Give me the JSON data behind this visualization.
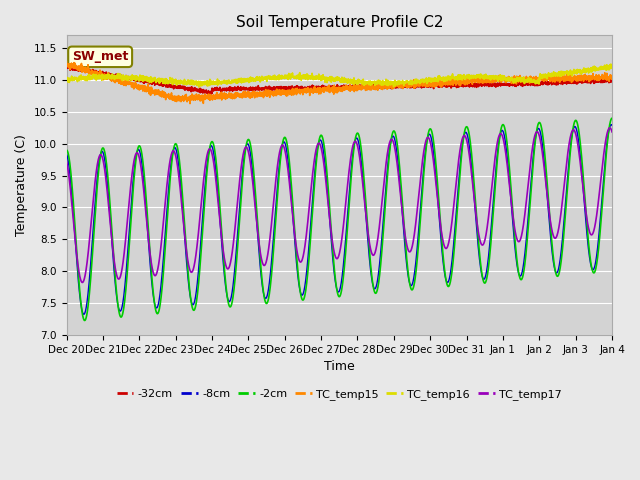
{
  "title": "Soil Temperature Profile C2",
  "xlabel": "Time",
  "ylabel": "Temperature (C)",
  "ylim": [
    7.0,
    11.7
  ],
  "yticks": [
    7.0,
    7.5,
    8.0,
    8.5,
    9.0,
    9.5,
    10.0,
    10.5,
    11.0,
    11.5
  ],
  "colors": {
    "neg32cm": "#cc0000",
    "neg8cm": "#0000cc",
    "neg2cm": "#00cc00",
    "TC15": "#ff8800",
    "TC16": "#dddd00",
    "TC17": "#9900bb"
  },
  "legend_labels": [
    "-32cm",
    "-8cm",
    "-2cm",
    "TC_temp15",
    "TC_temp16",
    "TC_temp17"
  ],
  "annotation_text": "SW_met",
  "background_color": "#e8e8e8",
  "plot_bg_color": "#d3d3d3",
  "n_days": 15
}
